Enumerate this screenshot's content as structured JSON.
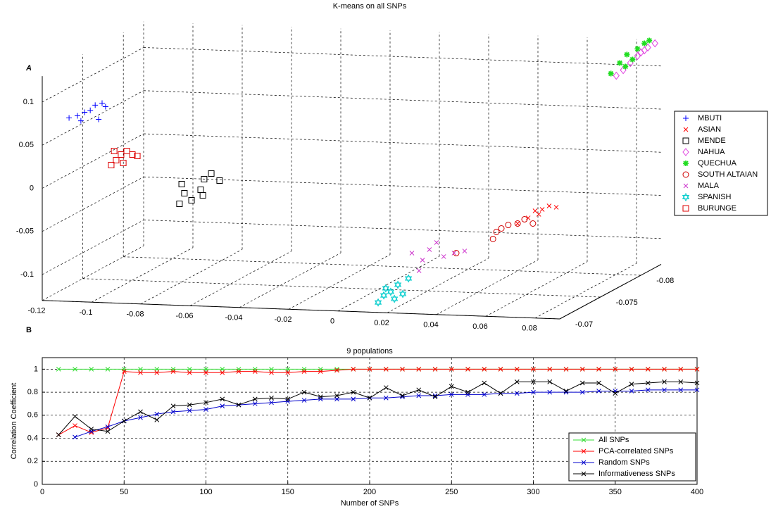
{
  "chart_data": [
    {
      "type": "scatter3d",
      "title": "K-means on all SNPs",
      "panel_label": "A",
      "xlim": [
        -0.12,
        0.09
      ],
      "ylim": [
        -0.0825,
        -0.07
      ],
      "zlim": [
        -0.13,
        0.13
      ],
      "xticks": [
        -0.12,
        -0.1,
        -0.08,
        -0.06,
        -0.04,
        -0.02,
        0,
        0.02,
        0.04,
        0.06,
        0.08
      ],
      "yticks": [
        -0.08,
        -0.075,
        -0.07
      ],
      "zticks": [
        -0.1,
        -0.05,
        0,
        0.05,
        0.1
      ],
      "grid": true,
      "legend": "right",
      "series": [
        {
          "name": "MBUTI",
          "color": "#0000ff",
          "marker": "plus",
          "x": [
            -0.1157,
            -0.1123,
            -0.1094,
            -0.1071,
            -0.1051,
            -0.1023,
            -0.1009,
            -0.1037,
            -0.1109
          ],
          "y": [
            -0.072,
            -0.072,
            -0.072,
            -0.072,
            -0.072,
            -0.072,
            -0.072,
            -0.072,
            -0.072
          ],
          "z": [
            0.0719,
            0.0747,
            0.0791,
            0.0816,
            0.0878,
            0.0905,
            0.0865,
            0.0715,
            0.0691
          ]
        },
        {
          "name": "ASIAN",
          "color": "#ff0000",
          "marker": "x",
          "x": [
            0.0663,
            0.0706,
            0.0734,
            0.0763,
            0.0791,
            0.082,
            0.0749
          ],
          "y": [
            -0.072,
            -0.072,
            -0.072,
            -0.072,
            -0.072,
            -0.072,
            -0.072
          ],
          "z": [
            -0.0319,
            -0.025,
            -0.0165,
            -0.0146,
            -0.0102,
            -0.0115,
            -0.0204
          ]
        },
        {
          "name": "MENDE",
          "color": "#000000",
          "marker": "square",
          "x": [
            -0.0709,
            -0.0689,
            -0.07,
            -0.066,
            -0.0623,
            -0.0609,
            -0.058,
            -0.0546,
            -0.0614
          ],
          "y": [
            -0.072,
            -0.072,
            -0.072,
            -0.072,
            -0.072,
            -0.072,
            -0.072,
            -0.072,
            -0.072
          ],
          "z": [
            -0.0231,
            -0.0106,
            -0.0001,
            -0.0185,
            -0.0059,
            0.0065,
            0.0133,
            0.0055,
            -0.0123
          ]
        },
        {
          "name": "NAHUA",
          "color": "#e040e0",
          "marker": "diamond",
          "x": [
            0.0718,
            0.0775,
            0.0818,
            0.0846,
            0.0875,
            0.0804,
            0.0832,
            0.0746
          ],
          "y": [
            -0.0825,
            -0.0825,
            -0.0825,
            -0.0825,
            -0.0825,
            -0.0825,
            -0.0825,
            -0.0825
          ],
          "z": [
            0.0869,
            0.1022,
            0.1149,
            0.1209,
            0.126,
            0.1107,
            0.1175,
            0.0937
          ]
        },
        {
          "name": "QUECHUA",
          "color": "#22dd22",
          "marker": "star",
          "x": [
            0.0696,
            0.0732,
            0.0761,
            0.0784,
            0.0804,
            0.0832,
            0.0852,
            0.0755
          ],
          "y": [
            -0.0825,
            -0.0825,
            -0.0825,
            -0.0825,
            -0.0825,
            -0.0825,
            -0.0825,
            -0.0825
          ],
          "z": [
            0.0891,
            0.1018,
            0.1118,
            0.1064,
            0.1189,
            0.1256,
            0.1291,
            0.0979
          ]
        },
        {
          "name": "SOUTH ALTAIAN",
          "color": "#d00000",
          "marker": "circle",
          "x": [
            0.048,
            0.0629,
            0.0663,
            0.0691,
            0.0729,
            0.0757,
            0.0791,
            0.0643
          ],
          "y": [
            -0.07,
            -0.07,
            -0.07,
            -0.07,
            -0.07,
            -0.07,
            -0.07,
            -0.07
          ],
          "z": [
            -0.058,
            -0.0401,
            -0.0275,
            -0.0232,
            -0.0211,
            -0.0159,
            -0.0205,
            -0.0318
          ]
        },
        {
          "name": "MALA",
          "color": "#cc33cc",
          "marker": "x",
          "x": [
            0.03,
            0.0329,
            0.0343,
            0.0371,
            0.04,
            0.0429,
            0.0471,
            0.0514
          ],
          "y": [
            -0.07,
            -0.07,
            -0.07,
            -0.07,
            -0.07,
            -0.07,
            -0.07,
            -0.07
          ],
          "z": [
            -0.0598,
            -0.0799,
            -0.0675,
            -0.055,
            -0.0465,
            -0.0625,
            -0.058,
            -0.0552
          ]
        },
        {
          "name": "SPANISH",
          "color": "#00cccc",
          "marker": "hexagram",
          "x": [
            0.0163,
            0.0186,
            0.0214,
            0.0194,
            0.0243,
            0.0263,
            0.0286,
            0.0229
          ],
          "y": [
            -0.07,
            -0.07,
            -0.07,
            -0.07,
            -0.07,
            -0.07,
            -0.07,
            -0.07
          ],
          "z": [
            -0.1184,
            -0.11,
            -0.1056,
            -0.1017,
            -0.0971,
            -0.1075,
            -0.0893,
            -0.1136
          ]
        },
        {
          "name": "BURUNGE",
          "color": "#dd0000",
          "marker": "square",
          "x": [
            -0.0986,
            -0.0966,
            -0.0946,
            -0.0923,
            -0.09,
            -0.088,
            -0.0974,
            -0.0937
          ],
          "y": [
            -0.072,
            -0.072,
            -0.072,
            -0.072,
            -0.072,
            -0.072,
            -0.072,
            -0.072
          ],
          "z": [
            0.019,
            0.0249,
            0.0317,
            0.036,
            0.0321,
            0.0307,
            0.0354,
            0.022
          ]
        }
      ]
    },
    {
      "type": "line",
      "title": "9 populations",
      "panel_label": "B",
      "xlabel": "Number of SNPs",
      "ylabel": "Correlation Coefficient",
      "xlim": [
        0,
        400
      ],
      "ylim": [
        0,
        1.1
      ],
      "xticks": [
        0,
        50,
        100,
        150,
        200,
        250,
        300,
        350,
        400
      ],
      "yticks": [
        0,
        0.2,
        0.4,
        0.6,
        0.8,
        1
      ],
      "grid": true,
      "legend": "lower right",
      "x": [
        10,
        20,
        30,
        40,
        50,
        60,
        70,
        80,
        90,
        100,
        110,
        120,
        130,
        140,
        150,
        160,
        170,
        180,
        190,
        200,
        210,
        220,
        230,
        240,
        250,
        260,
        270,
        280,
        290,
        300,
        310,
        320,
        330,
        340,
        350,
        360,
        370,
        380,
        390,
        400
      ],
      "series": [
        {
          "name": "All SNPs",
          "color": "#33dd33",
          "values": [
            1,
            1,
            1,
            1,
            1,
            1,
            1,
            1,
            1,
            1,
            1,
            1,
            1,
            1,
            1,
            1,
            1,
            1,
            1,
            1,
            1,
            1,
            1,
            1,
            1,
            1,
            1,
            1,
            1,
            1,
            1,
            1,
            1,
            1,
            1,
            1,
            1,
            1,
            1,
            1
          ]
        },
        {
          "name": "PCA-correlated SNPs",
          "color": "#ff0000",
          "values": [
            0.43,
            0.51,
            0.45,
            0.49,
            0.98,
            0.97,
            0.97,
            0.98,
            0.97,
            0.97,
            0.97,
            0.98,
            0.98,
            0.97,
            0.97,
            0.98,
            0.98,
            0.99,
            1,
            1,
            1,
            1,
            1,
            1,
            1,
            1,
            1,
            1,
            1,
            1,
            1,
            1,
            1,
            1,
            1,
            1,
            1,
            1,
            1,
            1
          ]
        },
        {
          "name": "Random SNPs",
          "color": "#0000cc",
          "values": [
            null,
            0.41,
            0.46,
            0.5,
            0.55,
            0.58,
            0.61,
            0.63,
            0.64,
            0.65,
            0.68,
            0.69,
            0.7,
            0.71,
            0.72,
            0.73,
            0.74,
            0.74,
            0.74,
            0.75,
            0.75,
            0.76,
            0.77,
            0.77,
            0.78,
            0.78,
            0.78,
            0.79,
            0.79,
            0.8,
            0.8,
            0.8,
            0.8,
            0.81,
            0.81,
            0.81,
            0.82,
            0.82,
            0.82,
            0.82
          ]
        },
        {
          "name": "Informativeness SNPs",
          "color": "#000000",
          "values": [
            0.43,
            0.59,
            0.48,
            0.46,
            0.55,
            0.63,
            0.56,
            0.68,
            0.69,
            0.71,
            0.74,
            0.69,
            0.74,
            0.75,
            0.74,
            0.8,
            0.76,
            0.77,
            0.8,
            0.75,
            0.84,
            0.77,
            0.82,
            0.76,
            0.85,
            0.8,
            0.88,
            0.79,
            0.89,
            0.89,
            0.89,
            0.81,
            0.88,
            0.88,
            0.79,
            0.87,
            0.88,
            0.89,
            0.89,
            0.88
          ]
        }
      ]
    }
  ]
}
